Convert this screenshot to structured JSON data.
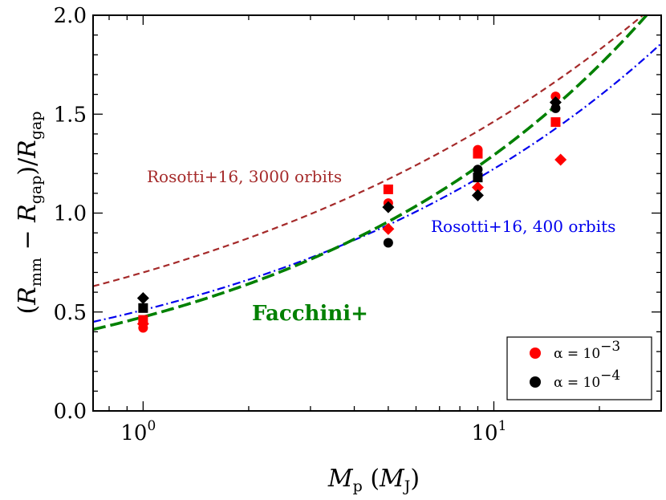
{
  "chart_data": {
    "type": "scatter",
    "xscale": "log",
    "xlim": [
      0.72,
      30
    ],
    "ylim": [
      0.0,
      2.0
    ],
    "xticks_major": [
      {
        "value": 1,
        "base": "10",
        "exp": "0"
      },
      {
        "value": 10,
        "base": "10",
        "exp": "1"
      }
    ],
    "yticks": [
      "0.0",
      "0.5",
      "1.0",
      "1.5",
      "2.0"
    ],
    "xlabel": {
      "main": "M",
      "sub": "p",
      "paren_open": " (",
      "inner": "M",
      "inner_sub": "J",
      "paren_close": ")"
    },
    "ylabel": {
      "open": "(",
      "r1": "R",
      "s1": "mm",
      "minus": " − ",
      "r2": "R",
      "s2": "gap",
      "close": ")/",
      "r3": "R",
      "s3": "gap"
    },
    "curves": [
      {
        "name": "Rosotti+16, 3000 orbits",
        "color": "#a52a2a",
        "style": "dashed",
        "a": 0.7,
        "b": 0.32
      },
      {
        "name": "Rosotti+16, 400 orbits",
        "color": "#0000ee",
        "style": "dashdot",
        "a": 0.51,
        "b": 0.38
      },
      {
        "name": "Facchini+",
        "color": "#008000",
        "style": "longdash",
        "a": 0.475,
        "b": 0.435
      }
    ],
    "annotations": [
      {
        "text": "Rosotti+16, 3000 orbits",
        "color": "#a52a2a"
      },
      {
        "text": "Rosotti+16, 400 orbits",
        "color": "#0000ee"
      },
      {
        "text": "Facchini+",
        "color": "#008000"
      }
    ],
    "series": [
      {
        "name": "alpha=1e-3",
        "color": "#ff0000",
        "points": [
          {
            "x": 1,
            "y": 0.42,
            "m": "circle"
          },
          {
            "x": 1,
            "y": 0.46,
            "m": "square"
          },
          {
            "x": 1,
            "y": 0.44,
            "m": "diamond"
          },
          {
            "x": 5,
            "y": 1.12,
            "m": "square"
          },
          {
            "x": 5,
            "y": 1.05,
            "m": "circle"
          },
          {
            "x": 5,
            "y": 0.92,
            "m": "diamond"
          },
          {
            "x": 9,
            "y": 1.32,
            "m": "circle"
          },
          {
            "x": 9,
            "y": 1.3,
            "m": "square"
          },
          {
            "x": 9,
            "y": 1.13,
            "m": "diamond"
          },
          {
            "x": 15,
            "y": 1.59,
            "m": "circle"
          },
          {
            "x": 15,
            "y": 1.46,
            "m": "square"
          },
          {
            "x": 15.5,
            "y": 1.27,
            "m": "diamond"
          }
        ]
      },
      {
        "name": "alpha=1e-4",
        "color": "#000000",
        "points": [
          {
            "x": 1,
            "y": 0.57,
            "m": "diamond"
          },
          {
            "x": 1,
            "y": 0.52,
            "m": "square"
          },
          {
            "x": 5,
            "y": 1.03,
            "m": "diamond"
          },
          {
            "x": 5,
            "y": 0.85,
            "m": "circle"
          },
          {
            "x": 9,
            "y": 1.22,
            "m": "circle"
          },
          {
            "x": 9,
            "y": 1.18,
            "m": "square"
          },
          {
            "x": 9,
            "y": 1.09,
            "m": "diamond"
          },
          {
            "x": 15,
            "y": 1.56,
            "m": "diamond"
          },
          {
            "x": 15,
            "y": 1.53,
            "m": "circle"
          }
        ]
      }
    ],
    "legend": {
      "placement": "bottom-right",
      "entries": [
        {
          "color": "#ff0000",
          "prefix": "α = 10",
          "exp": "−3"
        },
        {
          "color": "#000000",
          "prefix": "α = 10",
          "exp": "−4"
        }
      ]
    }
  }
}
